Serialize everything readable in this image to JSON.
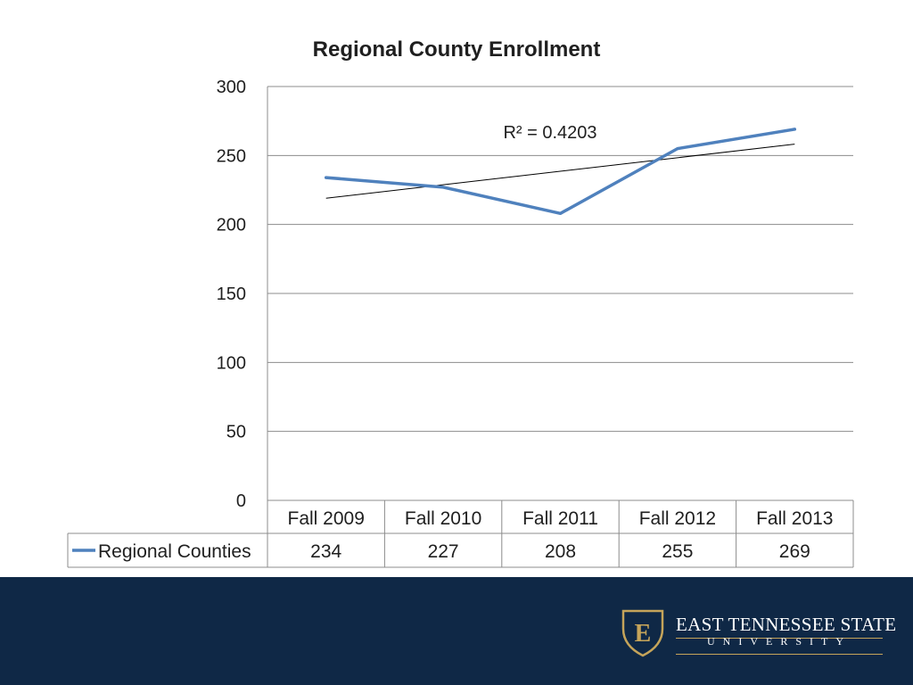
{
  "chart_data": {
    "type": "line",
    "title": "Regional County Enrollment",
    "categories": [
      "Fall 2009",
      "Fall 2010",
      "Fall 2011",
      "Fall 2012",
      "Fall 2013"
    ],
    "series": [
      {
        "name": "Regional Counties",
        "values": [
          234,
          227,
          208,
          255,
          269
        ],
        "color": "#4f81bd"
      }
    ],
    "trendline": {
      "type": "linear",
      "r_squared_label": "R² = 0.4203",
      "color": "#000000"
    },
    "yticks": [
      "0",
      "50",
      "100",
      "150",
      "200",
      "250",
      "300"
    ],
    "ylim": [
      0,
      300
    ],
    "grid": true,
    "data_table": true
  },
  "footer": {
    "logo_letter": "E",
    "university_line1": "EAST TENNESSEE STATE",
    "university_line2": "UNIVERSITY",
    "background_color": "#0f2846",
    "accent_color": "#c5a45a"
  }
}
